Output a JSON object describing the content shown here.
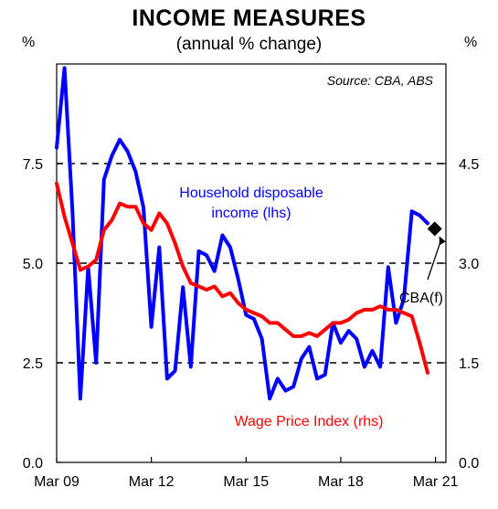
{
  "chart_data": {
    "type": "line",
    "title": "INCOME MEASURES",
    "subtitle": "(annual % change)",
    "source": "Source: CBA, ABS",
    "left_axis_unit": "%",
    "right_axis_unit": "%",
    "left_axis": {
      "ylim": [
        0,
        10
      ],
      "ticks": [
        0,
        2.5,
        5,
        7.5
      ],
      "tick_labels": [
        "0.0",
        "2.5",
        "5.0",
        "7.5"
      ]
    },
    "right_axis": {
      "ylim": [
        0,
        6
      ],
      "ticks": [
        0,
        1.5,
        3,
        4.5
      ],
      "tick_labels": [
        "0.0",
        "1.5",
        "3.0",
        "4.5"
      ]
    },
    "x_axis": {
      "range": [
        2009.17,
        2021.5
      ],
      "ticks": [
        2009.17,
        2012.17,
        2015.17,
        2018.17,
        2021.17
      ],
      "tick_labels": [
        "Mar 09",
        "Mar 12",
        "Mar 15",
        "Mar 18",
        "Mar 21"
      ]
    },
    "grid": "dashed horizontal at left ticks",
    "series": [
      {
        "name": "Household disposable income (lhs)",
        "label": [
          "Household disposable",
          "income (lhs)"
        ],
        "axis": "left",
        "color": "#0000ff",
        "x": [
          2009.17,
          2009.42,
          2009.67,
          2009.92,
          2010.17,
          2010.42,
          2010.67,
          2010.92,
          2011.17,
          2011.42,
          2011.67,
          2011.92,
          2012.17,
          2012.42,
          2012.67,
          2012.92,
          2013.17,
          2013.42,
          2013.67,
          2013.92,
          2014.17,
          2014.42,
          2014.67,
          2014.92,
          2015.17,
          2015.42,
          2015.67,
          2015.92,
          2016.17,
          2016.42,
          2016.67,
          2016.92,
          2017.17,
          2017.42,
          2017.67,
          2017.92,
          2018.17,
          2018.42,
          2018.67,
          2018.92,
          2019.17,
          2019.42,
          2019.67,
          2019.92,
          2020.17,
          2020.42,
          2020.67,
          2020.92
        ],
        "y": [
          7.9,
          9.9,
          6.3,
          1.6,
          4.9,
          2.5,
          7.1,
          7.7,
          8.1,
          7.8,
          7.3,
          6.4,
          3.4,
          5.4,
          2.1,
          2.3,
          4.4,
          2.4,
          5.3,
          5.2,
          4.8,
          5.7,
          5.4,
          4.6,
          3.7,
          3.6,
          3.1,
          1.6,
          2.1,
          1.8,
          1.9,
          2.6,
          2.9,
          2.1,
          2.2,
          3.5,
          3.0,
          3.3,
          3.1,
          2.4,
          2.8,
          2.4,
          4.9,
          3.5,
          4.1,
          6.3,
          6.2,
          6.0
        ]
      },
      {
        "name": "Wage Price Index (rhs)",
        "label": [
          "Wage Price Index (rhs)"
        ],
        "axis": "right",
        "color": "#ff0000",
        "x": [
          2009.17,
          2009.42,
          2009.67,
          2009.92,
          2010.17,
          2010.42,
          2010.67,
          2010.92,
          2011.17,
          2011.42,
          2011.67,
          2011.92,
          2012.17,
          2012.42,
          2012.67,
          2012.92,
          2013.17,
          2013.42,
          2013.67,
          2013.92,
          2014.17,
          2014.42,
          2014.67,
          2014.92,
          2015.17,
          2015.42,
          2015.67,
          2015.92,
          2016.17,
          2016.42,
          2016.67,
          2016.92,
          2017.17,
          2017.42,
          2017.67,
          2017.92,
          2018.17,
          2018.42,
          2018.67,
          2018.92,
          2019.17,
          2019.42,
          2019.67,
          2019.92,
          2020.17,
          2020.42,
          2020.67,
          2020.92
        ],
        "y": [
          4.2,
          3.7,
          3.3,
          2.9,
          2.95,
          3.05,
          3.5,
          3.65,
          3.9,
          3.85,
          3.85,
          3.6,
          3.5,
          3.75,
          3.6,
          3.3,
          2.95,
          2.7,
          2.65,
          2.6,
          2.65,
          2.5,
          2.55,
          2.4,
          2.3,
          2.25,
          2.2,
          2.1,
          2.1,
          2.0,
          1.9,
          1.9,
          1.95,
          1.9,
          2.0,
          2.1,
          2.1,
          2.15,
          2.25,
          2.3,
          2.3,
          2.35,
          2.3,
          2.3,
          2.25,
          2.2,
          1.8,
          1.35
        ]
      }
    ],
    "forecast_point": {
      "label": "CBA(f)",
      "axis": "left",
      "x": 2021.0,
      "y": 6.0,
      "marker": "diamond"
    }
  }
}
